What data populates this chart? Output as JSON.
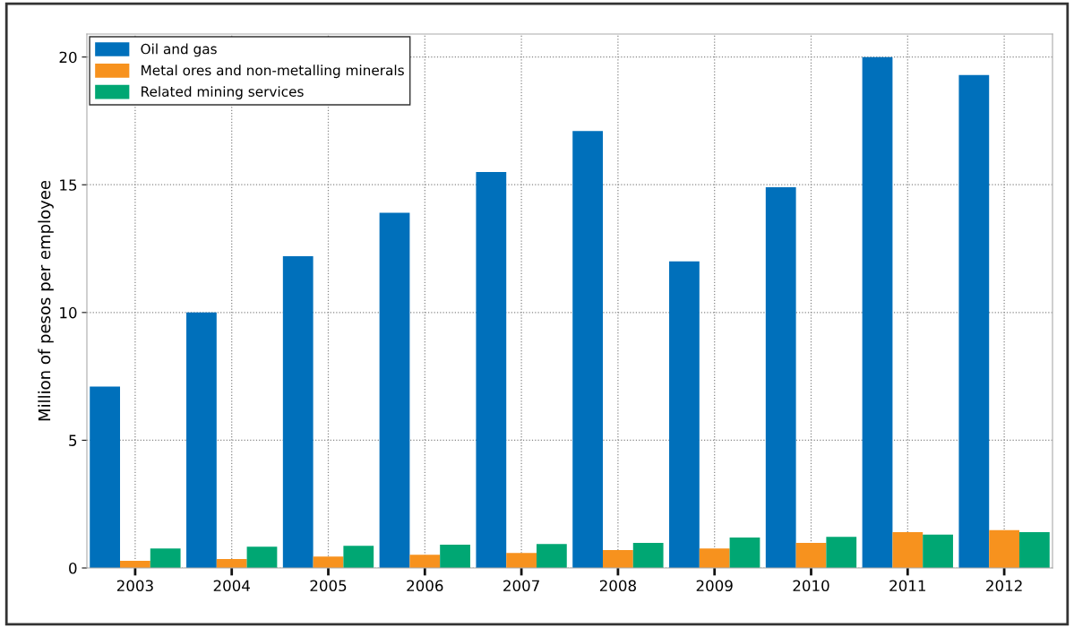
{
  "chart_data": {
    "type": "bar",
    "ylabel": "Million of pesos per employee",
    "categories": [
      "2003",
      "2004",
      "2005",
      "2006",
      "2007",
      "2008",
      "2009",
      "2010",
      "2011",
      "2012"
    ],
    "series": [
      {
        "name": "Oil and gas",
        "color": "#0070bb",
        "values": [
          7.1,
          10.0,
          12.2,
          13.9,
          15.5,
          17.1,
          12.0,
          14.9,
          20.0,
          19.3
        ]
      },
      {
        "name": "Metal ores and non-metalling minerals",
        "color": "#f7921e",
        "values": [
          0.28,
          0.35,
          0.45,
          0.52,
          0.59,
          0.7,
          0.76,
          0.98,
          1.4,
          1.48
        ]
      },
      {
        "name": "Related mining services",
        "color": "#00a773",
        "values": [
          0.76,
          0.83,
          0.87,
          0.91,
          0.94,
          0.98,
          1.19,
          1.22,
          1.31,
          1.4
        ]
      }
    ],
    "ylim": [
      0,
      20.9
    ],
    "yticks": [
      0,
      5,
      10,
      15,
      20
    ],
    "grid": true,
    "legend": "top left"
  }
}
